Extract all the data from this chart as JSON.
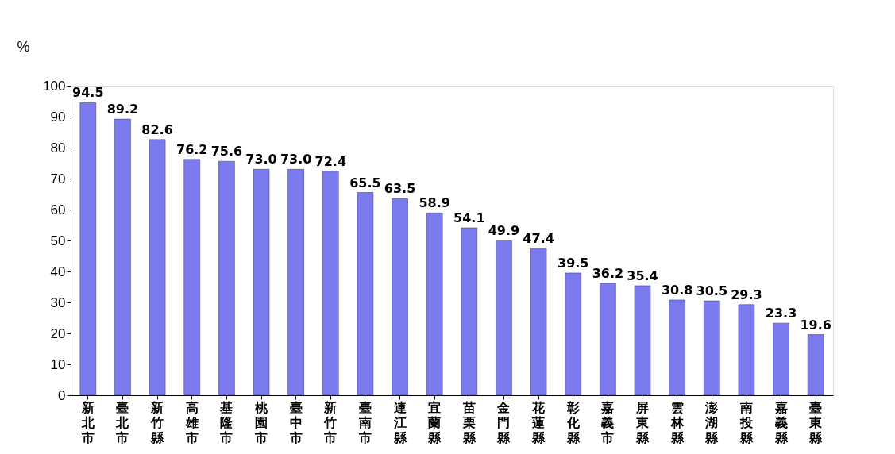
{
  "chart_data": {
    "type": "bar",
    "ylabel": "%",
    "categories": [
      "新北市",
      "臺北市",
      "新竹縣",
      "高雄市",
      "基隆市",
      "桃園市",
      "臺中市",
      "新竹市",
      "臺南市",
      "連江縣",
      "宜蘭縣",
      "苗栗縣",
      "金門縣",
      "花蓮縣",
      "彰化縣",
      "嘉義市",
      "屏東縣",
      "雲林縣",
      "澎湖縣",
      "南投縣",
      "嘉義縣",
      "臺東縣"
    ],
    "values": [
      94.5,
      89.2,
      82.6,
      76.2,
      75.6,
      73.0,
      73.0,
      72.4,
      65.5,
      63.5,
      58.9,
      54.1,
      49.9,
      47.4,
      39.5,
      36.2,
      35.4,
      30.8,
      30.5,
      29.3,
      23.3,
      19.6
    ],
    "value_labels": [
      "94.5",
      "89.2",
      "82.6",
      "76.2",
      "75.6",
      "73.0",
      "73.0",
      "72.4",
      "65.5",
      "63.5",
      "58.9",
      "54.1",
      "49.9",
      "47.4",
      "39.5",
      "36.2",
      "35.4",
      "30.8",
      "30.5",
      "29.3",
      "23.3",
      "19.6"
    ],
    "color": "#7b7bef",
    "ylim": [
      0,
      100
    ],
    "yticks": [
      0,
      10,
      20,
      30,
      40,
      50,
      60,
      70,
      80,
      90,
      100
    ],
    "grid": false
  }
}
